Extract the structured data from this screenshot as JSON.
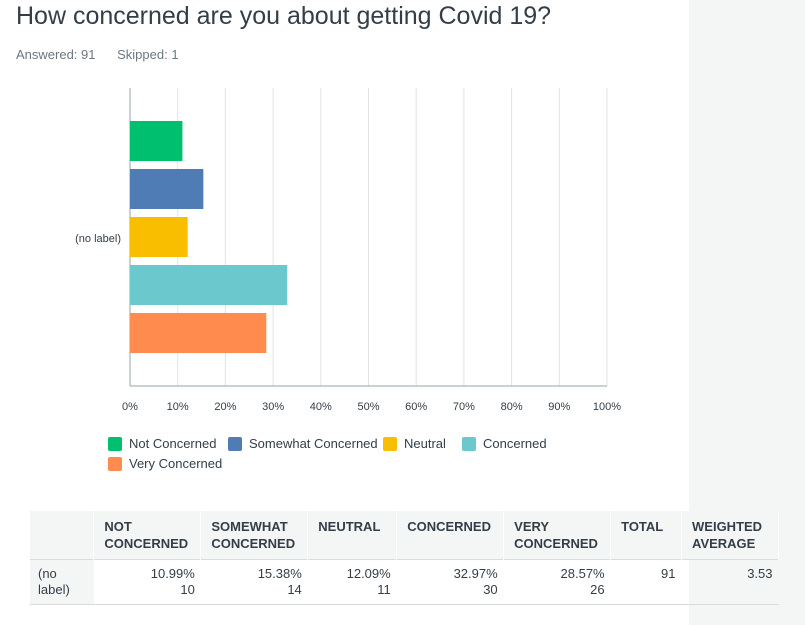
{
  "question": {
    "title": "How concerned are you about getting Covid 19?",
    "answered": "Answered: 91",
    "skipped": "Skipped: 1"
  },
  "colors": {
    "not_concerned": "#00bf6f",
    "somewhat_concerned": "#507cb6",
    "neutral": "#f9be00",
    "concerned": "#6bc8cd",
    "very_concerned": "#ff8b4f",
    "grid": "#e0e3e4",
    "axis": "#9aa3a8"
  },
  "chart_data": {
    "type": "bar",
    "orientation": "horizontal",
    "categories": [
      "(no label)"
    ],
    "series": [
      {
        "name": "Not Concerned",
        "values": [
          10.99
        ],
        "color": "#00bf6f"
      },
      {
        "name": "Somewhat Concerned",
        "values": [
          15.38
        ],
        "color": "#507cb6"
      },
      {
        "name": "Neutral",
        "values": [
          12.09
        ],
        "color": "#f9be00"
      },
      {
        "name": "Concerned",
        "values": [
          32.97
        ],
        "color": "#6bc8cd"
      },
      {
        "name": "Very Concerned",
        "values": [
          28.57
        ],
        "color": "#ff8b4f"
      }
    ],
    "xticks": [
      "0%",
      "10%",
      "20%",
      "30%",
      "40%",
      "50%",
      "60%",
      "70%",
      "80%",
      "90%",
      "100%"
    ],
    "xlim": [
      0,
      100
    ],
    "grid": true,
    "legend_position": "bottom"
  },
  "table": {
    "headers": [
      "",
      "NOT CONCERNED",
      "SOMEWHAT CONCERNED",
      "NEUTRAL",
      "CONCERNED",
      "VERY CONCERNED",
      "TOTAL",
      "WEIGHTED AVERAGE"
    ],
    "rows": [
      {
        "label": "(no label)",
        "cells": [
          {
            "pct": "10.99%",
            "count": "10"
          },
          {
            "pct": "15.38%",
            "count": "14"
          },
          {
            "pct": "12.09%",
            "count": "11"
          },
          {
            "pct": "32.97%",
            "count": "30"
          },
          {
            "pct": "28.57%",
            "count": "26"
          }
        ],
        "total": "91",
        "weighted_average": "3.53"
      }
    ]
  }
}
